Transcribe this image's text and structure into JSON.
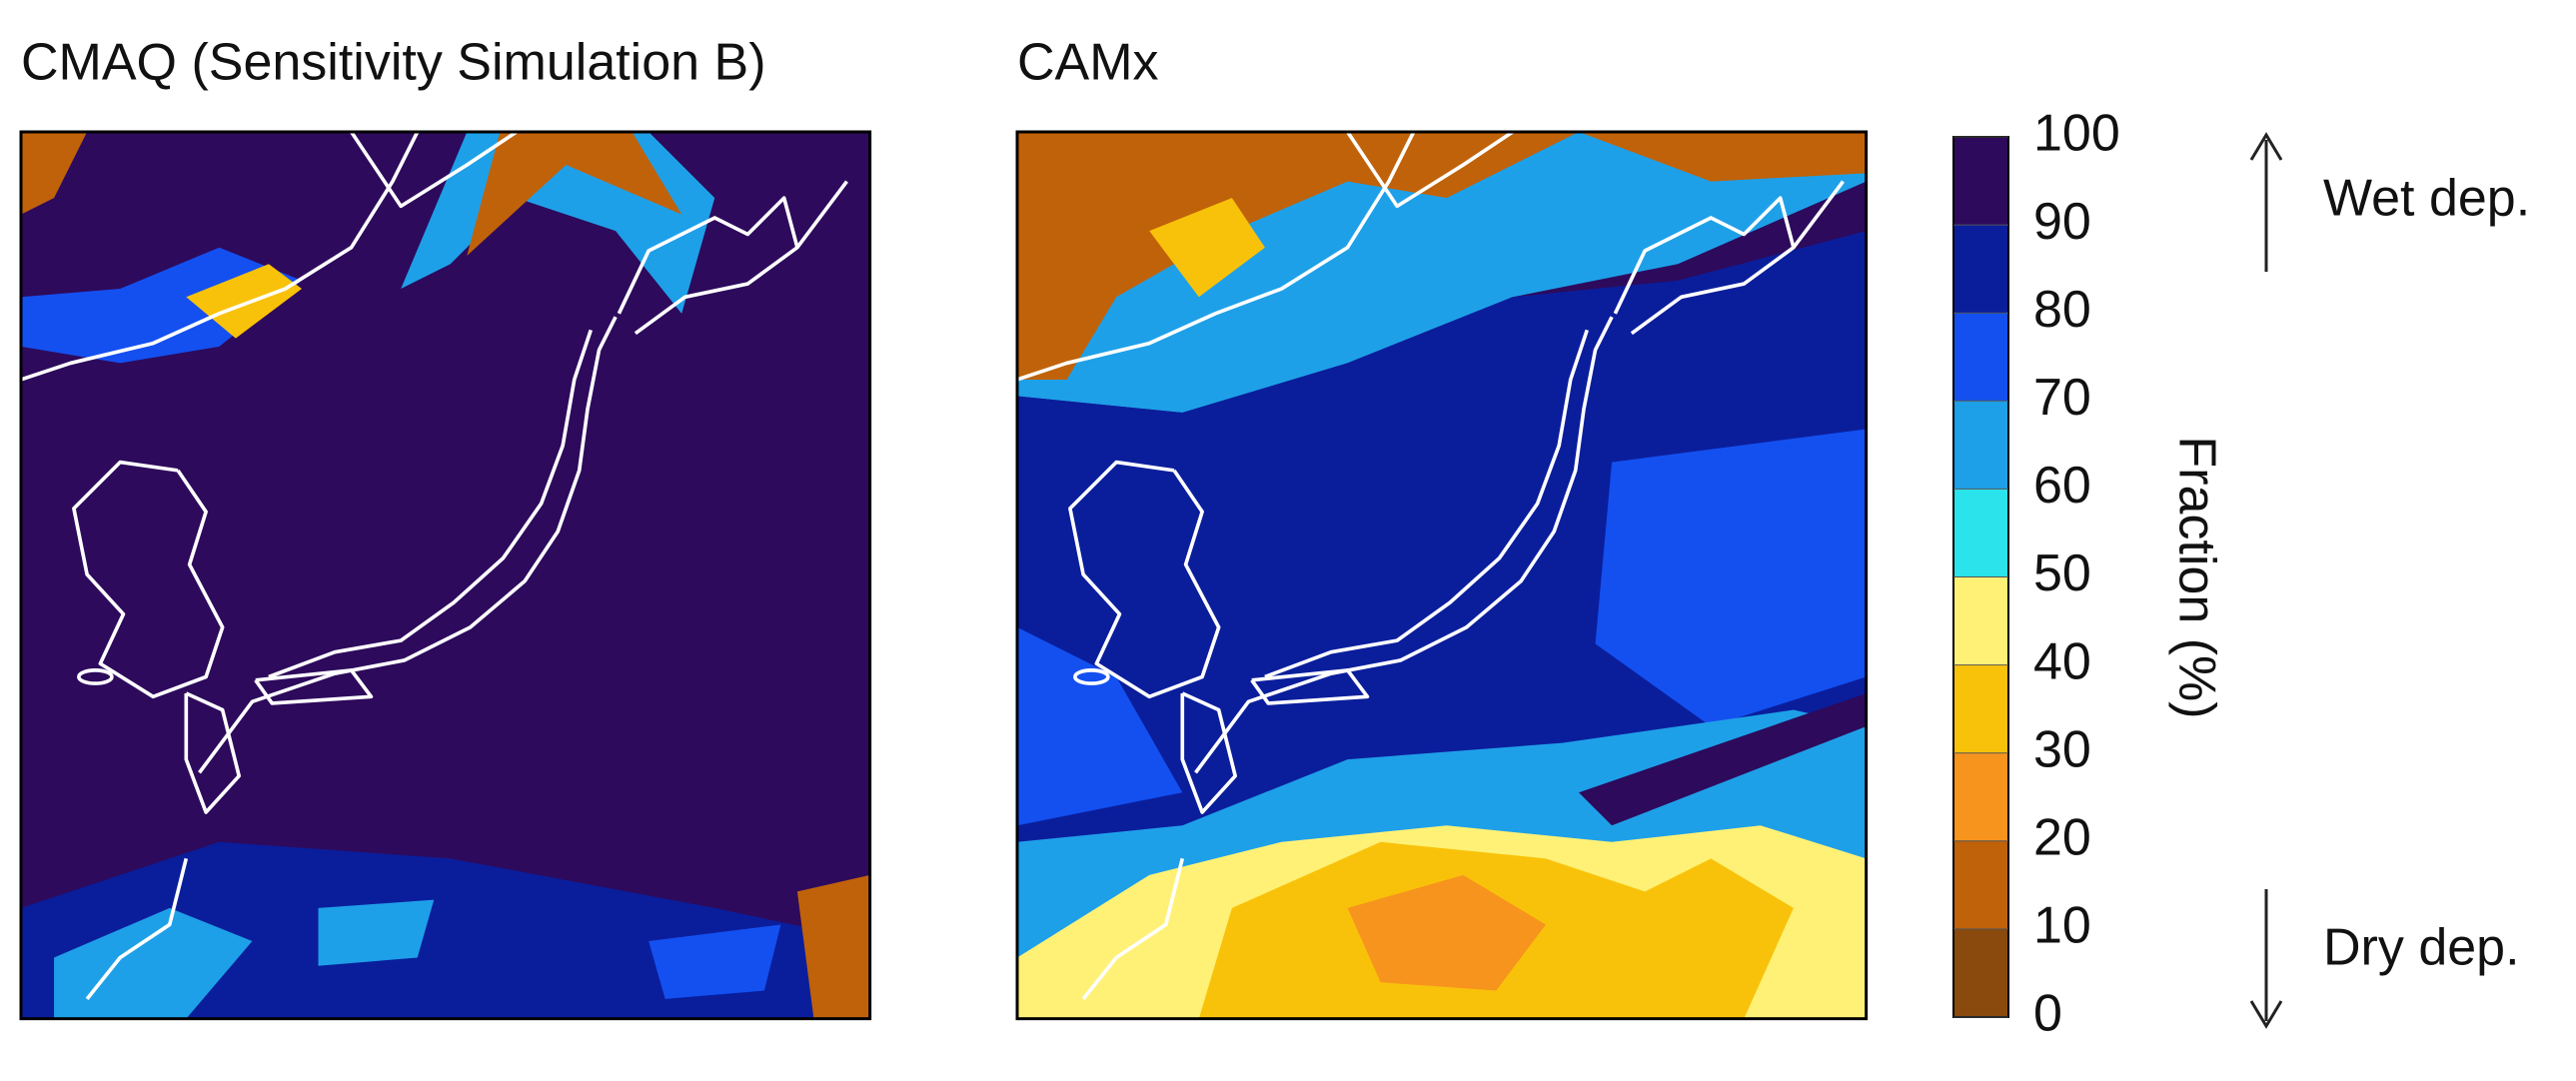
{
  "panels": [
    {
      "title": "CMAQ (Sensitivity Simulation B)"
    },
    {
      "title": "CAMx"
    }
  ],
  "colorbar": {
    "label": "Fraction (%)",
    "ticks": [
      0,
      10,
      20,
      30,
      40,
      50,
      60,
      70,
      80,
      90,
      100
    ],
    "colors": [
      "#8a4a0e",
      "#c0620a",
      "#f7941d",
      "#f9c20a",
      "#fff176",
      "#2be3ea",
      "#1ea0e8",
      "#1450f0",
      "#0a1e9c",
      "#2d0a5c"
    ]
  },
  "annotations": {
    "top": "Wet dep.",
    "bottom": "Dry dep."
  }
}
